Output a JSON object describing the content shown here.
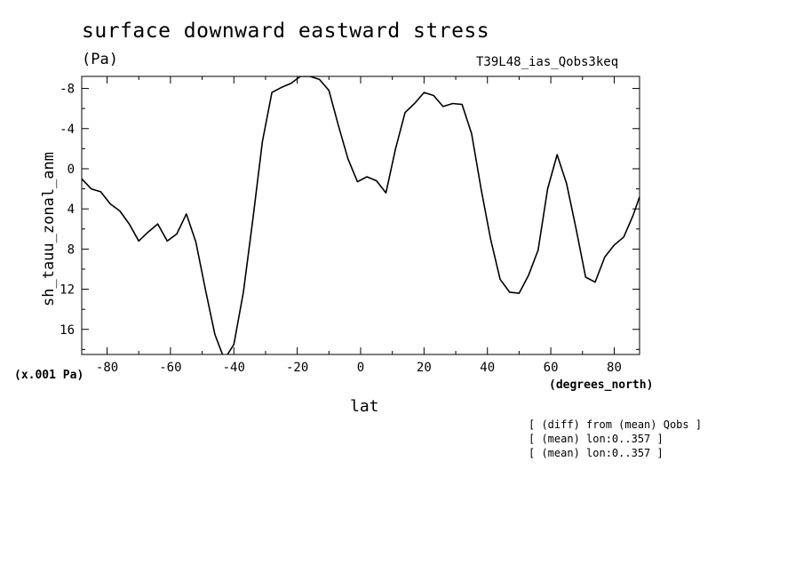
{
  "header": {
    "title": "surface downward eastward stress",
    "units": "(Pa)",
    "run_id": "T39L48_ias_Qobs3keq",
    "scale_note": "(x.001 Pa)",
    "x_units": "(degrees_north)"
  },
  "notes": [
    "[ (diff) from (mean) Qobs ]",
    "[ (mean) lon:0..357 ]",
    "[ (mean) lon:0..357 ]"
  ],
  "chart_data": {
    "type": "line",
    "title": "surface downward eastward stress",
    "xlabel": "lat",
    "ylabel": "sh_tauu_zonal_anm",
    "xlim": [
      -88,
      88
    ],
    "ylim": [
      18.5,
      -9.2
    ],
    "y_inverted": true,
    "x_ticks": [
      -80,
      -60,
      -40,
      -20,
      0,
      20,
      40,
      60,
      80
    ],
    "x_tick_labels": [
      "-80",
      "-60",
      "-40",
      "-20",
      "0",
      "20",
      "40",
      "60",
      "80"
    ],
    "y_ticks": [
      -8,
      -4,
      0,
      4,
      8,
      12,
      16
    ],
    "y_tick_labels": [
      "-8",
      "-4",
      "0",
      "4",
      "8",
      "12",
      "16"
    ],
    "grid": false,
    "series": [
      {
        "x": [
          -88,
          -85,
          -82,
          -79,
          -76,
          -73,
          -70,
          -67,
          -64,
          -61,
          -58,
          -55,
          -52,
          -49,
          -46,
          -43,
          -40,
          -37,
          -34,
          -31,
          -28,
          -25,
          -22,
          -19,
          -16,
          -13,
          -10,
          -7,
          -4,
          -1,
          2,
          5,
          8,
          11,
          14,
          17,
          20,
          23,
          26,
          29,
          32,
          35,
          38,
          41,
          44,
          47,
          50,
          53,
          56,
          59,
          62,
          65,
          68,
          71,
          74,
          77,
          80,
          83,
          86,
          88
        ],
        "values": [
          1.0,
          2.0,
          2.3,
          3.5,
          4.2,
          5.5,
          7.2,
          6.3,
          5.5,
          7.2,
          6.5,
          4.5,
          7.3,
          12.0,
          16.5,
          19.0,
          17.5,
          12.3,
          5.0,
          -2.7,
          -7.6,
          -8.1,
          -8.5,
          -9.2,
          -9.2,
          -8.9,
          -7.8,
          -4.3,
          -1.0,
          1.3,
          0.8,
          1.2,
          2.4,
          -2.0,
          -5.6,
          -6.5,
          -7.6,
          -7.3,
          -6.2,
          -6.5,
          -6.4,
          -3.5,
          2.0,
          7.0,
          11.0,
          12.3,
          12.4,
          10.6,
          8.1,
          2.0,
          -1.4,
          1.5,
          6.0,
          10.8,
          11.3,
          8.8,
          7.6,
          6.8,
          4.6,
          2.8
        ]
      }
    ]
  }
}
